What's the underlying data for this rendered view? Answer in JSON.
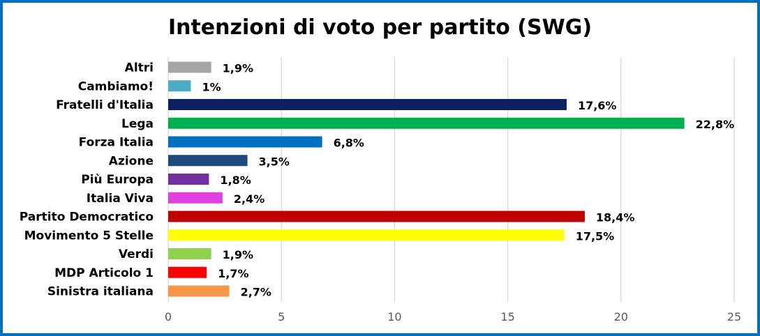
{
  "chart_data": {
    "type": "bar",
    "orientation": "horizontal",
    "title": "Intenzioni di voto per partito (SWG)",
    "categories": [
      "Altri",
      "Cambiamo!",
      "Fratelli d'Italia",
      "Lega",
      "Forza Italia",
      "Azione",
      "Più Europa",
      "Italia Viva",
      "Partito Democratico",
      "Movimento 5 Stelle",
      "Verdi",
      "MDP Articolo 1",
      "Sinistra italiana"
    ],
    "values": [
      1.9,
      1,
      17.6,
      22.8,
      6.8,
      3.5,
      1.8,
      2.4,
      18.4,
      17.5,
      1.9,
      1.7,
      2.7
    ],
    "data_labels": [
      "1,9%",
      "1%",
      "17,6%",
      "22,8%",
      "6,8%",
      "3,5%",
      "1,8%",
      "2,4%",
      "18,4%",
      "17,5%",
      "1,9%",
      "1,7%",
      "2,7%"
    ],
    "colors": [
      "#a5a5a5",
      "#4bacc6",
      "#0d2060",
      "#00b050",
      "#0070c0",
      "#1f497d",
      "#7030a0",
      "#e040e0",
      "#c00000",
      "#ffff00",
      "#92d050",
      "#ff0000",
      "#f79646"
    ],
    "xlim": [
      0,
      25
    ],
    "xticks": [
      0,
      5,
      10,
      15,
      20,
      25
    ],
    "xticklabels": [
      "0",
      "5",
      "10",
      "15",
      "20",
      "25"
    ],
    "grid": true,
    "legend": "none"
  },
  "style": {
    "border_color": "#0070c0",
    "grid_color": "#d9d9d9"
  }
}
